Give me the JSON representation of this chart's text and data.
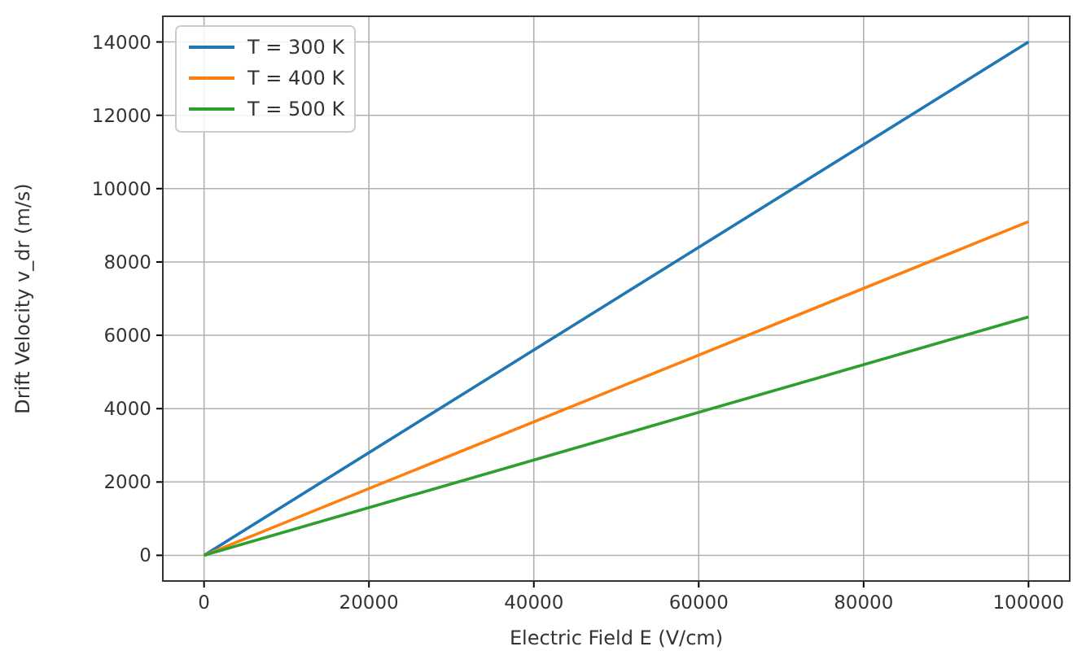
{
  "chart_data": {
    "type": "line",
    "xlabel": "Electric Field E (V/cm)",
    "ylabel": "Drift Velocity v_dr (m/s)",
    "x": [
      0,
      50000,
      100000
    ],
    "series": [
      {
        "name": "T = 300 K",
        "color": "#1f77b4",
        "values": [
          0,
          7000,
          14000
        ]
      },
      {
        "name": "T = 400 K",
        "color": "#ff7f0e",
        "values": [
          0,
          4550,
          9100
        ]
      },
      {
        "name": "T = 500 K",
        "color": "#2ca02c",
        "values": [
          0,
          3250,
          6500
        ]
      }
    ],
    "xlim": [
      -5000,
      105000
    ],
    "xticks": [
      0,
      20000,
      40000,
      60000,
      80000,
      100000
    ],
    "ylim": [
      -700,
      14700
    ],
    "yticks": [
      0,
      2000,
      4000,
      6000,
      8000,
      10000,
      12000,
      14000
    ],
    "grid": true,
    "legend": "top left",
    "marker": "none",
    "line_style": "solid"
  }
}
